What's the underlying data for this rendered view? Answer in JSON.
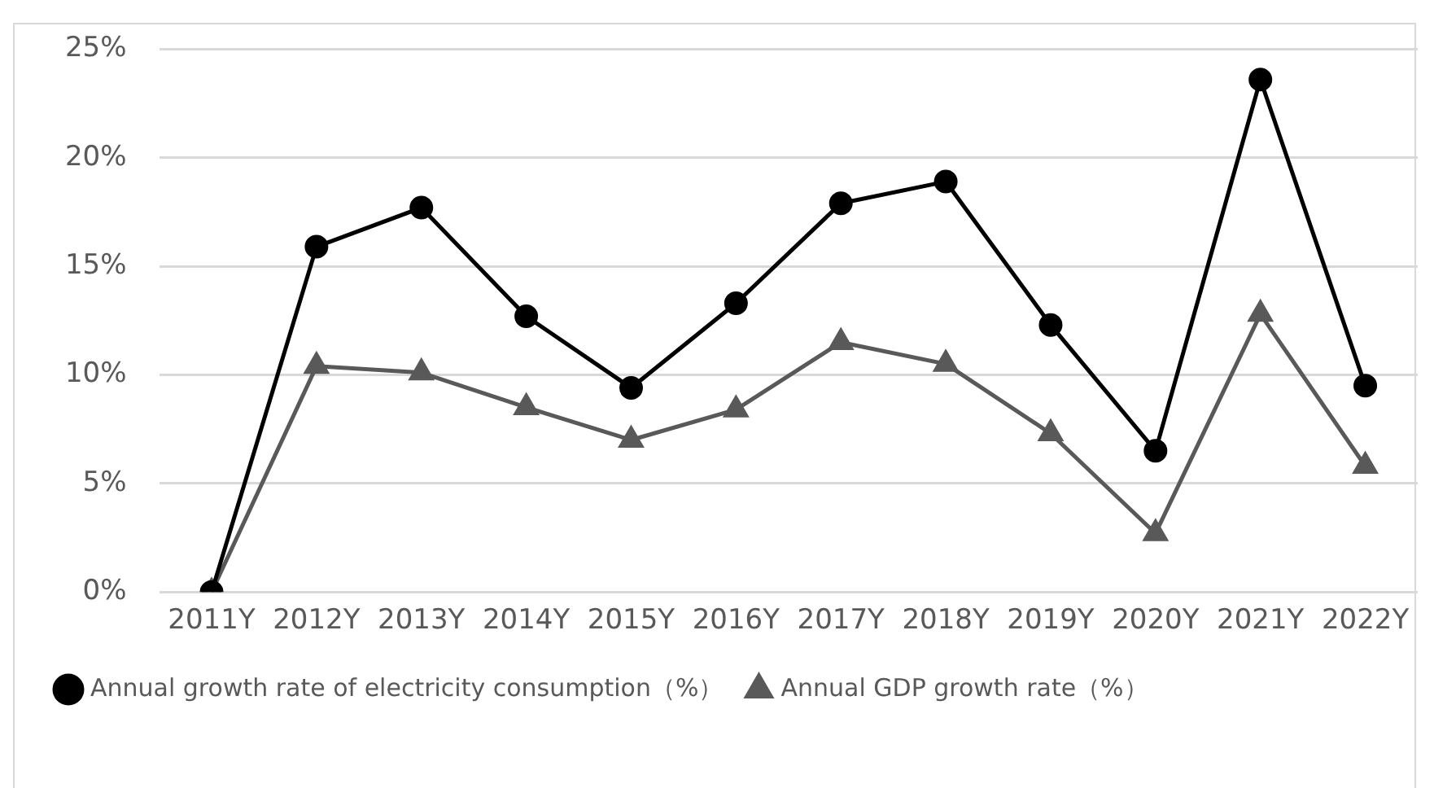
{
  "chart_data": {
    "type": "line",
    "categories": [
      "2011Y",
      "2012Y",
      "2013Y",
      "2014Y",
      "2015Y",
      "2016Y",
      "2017Y",
      "2018Y",
      "2019Y",
      "2020Y",
      "2021Y",
      "2022Y"
    ],
    "series": [
      {
        "name": "Annual growth rate of electricity consumption（%）",
        "color": "#000000",
        "marker": "circle",
        "values": [
          0,
          15.9,
          17.7,
          12.7,
          9.4,
          13.3,
          17.9,
          18.9,
          12.3,
          6.5,
          23.6,
          9.5
        ]
      },
      {
        "name": "Annual GDP growth rate（%）",
        "color": "#595959",
        "marker": "triangle",
        "values": [
          0,
          10.4,
          10.1,
          8.5,
          7.0,
          8.4,
          11.5,
          10.5,
          7.3,
          2.7,
          12.8,
          5.8
        ]
      }
    ],
    "ylim": [
      0,
      25
    ],
    "yticks": [
      {
        "value": 0,
        "label": "0%"
      },
      {
        "value": 5,
        "label": "5%"
      },
      {
        "value": 10,
        "label": "10%"
      },
      {
        "value": 15,
        "label": "15%"
      },
      {
        "value": 20,
        "label": "20%"
      },
      {
        "value": 25,
        "label": "25%"
      }
    ],
    "grid": "y",
    "legend": "bottom",
    "line_style": "solid"
  }
}
